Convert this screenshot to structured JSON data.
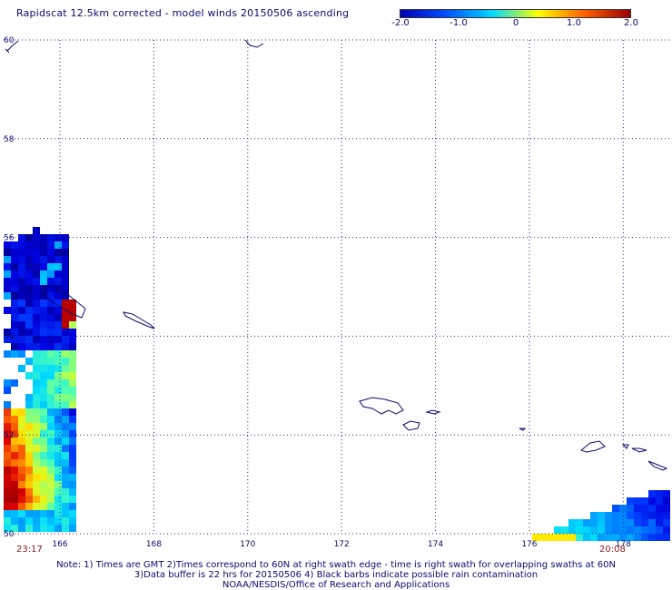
{
  "header": {
    "title": "Rapidscat 12.5km corrected - model winds 20150506 ascending"
  },
  "colorbar": {
    "ticks": [
      "-2.0",
      "-1.0",
      "0",
      "1.0",
      "2.0"
    ],
    "values": [
      -2.0,
      -1.0,
      0,
      1.0,
      2.0
    ],
    "colors": [
      "#0000b4",
      "#0050ff",
      "#00d8ff",
      "#ffff00",
      "#ff6000",
      "#9b0000"
    ]
  },
  "map": {
    "lon_range": [
      164.8,
      179.0
    ],
    "lat_range": [
      50,
      60
    ],
    "lon_ticks": [
      "166",
      "168",
      "170",
      "172",
      "174",
      "176",
      "178"
    ],
    "lat_ticks": [
      "60",
      "58",
      "56",
      "54",
      "52",
      "50"
    ],
    "grid_lon": [
      166,
      168,
      170,
      172,
      174,
      176,
      178
    ],
    "grid_lat": [
      50,
      52,
      54,
      56,
      58,
      60
    ]
  },
  "swaths": {
    "left_time": "23:17",
    "right_time": "20:08"
  },
  "footer": {
    "note_line1": "Note: 1) Times are GMT 2)Times correspond to 60N at right swath edge - time is right swath for overlapping swaths at 60N",
    "note_line2": "3)Data buffer is 22 hrs for 20150506 4) Black barbs indicate possible rain contamination",
    "note_line3": "NOAA/NESDIS/Office of Research and Applications"
  }
}
